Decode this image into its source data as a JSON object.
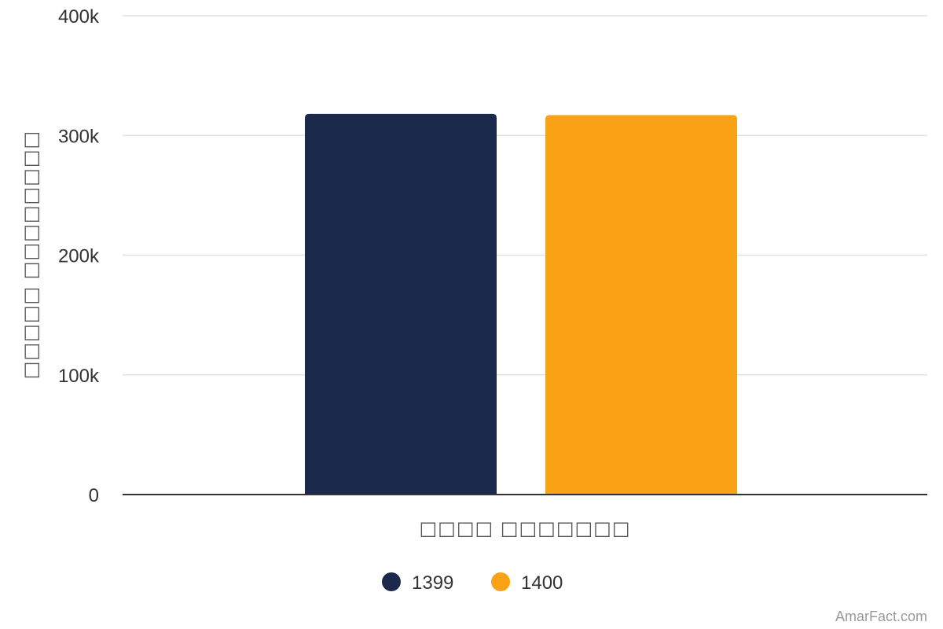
{
  "chart_data": {
    "type": "bar",
    "categories": [
      "□□□□ □□□□□□□"
    ],
    "series": [
      {
        "name": "1399",
        "values": [
          318000
        ],
        "color": "#1b2a4c"
      },
      {
        "name": "1400",
        "values": [
          317000
        ],
        "color": "#f9a216"
      }
    ],
    "xlabel": "□□□□ □□□□□□□",
    "ylabel": "□□□□□ □□□□□□□□",
    "ylim": [
      0,
      400000
    ],
    "yticks": [
      {
        "value": 0,
        "label": "0"
      },
      {
        "value": 100000,
        "label": "100k"
      },
      {
        "value": 200000,
        "label": "200k"
      },
      {
        "value": 300000,
        "label": "300k"
      },
      {
        "value": 400000,
        "label": "400k"
      }
    ],
    "grid": true,
    "legend_position": "bottom-center"
  },
  "credit": "AmarFact.com"
}
